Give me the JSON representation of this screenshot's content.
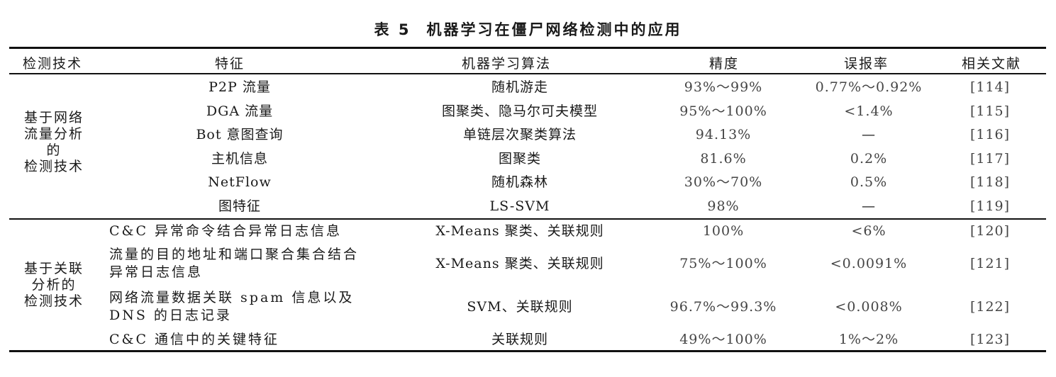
{
  "caption": {
    "number": "表 5",
    "title": "机器学习在僵尸网络检测中的应用"
  },
  "headers": [
    "检测技术",
    "特征",
    "机器学习算法",
    "精度",
    "误报率",
    "相关文献"
  ],
  "group1": {
    "label_lines": [
      "基于网络",
      "流量分析",
      "的",
      "检测技术"
    ],
    "rows": [
      {
        "feature": "P2P 流量",
        "algorithm": "随机游走",
        "accuracy": "93%～99%",
        "fpr": "0.77%～0.92%",
        "ref": "[114]"
      },
      {
        "feature": "DGA 流量",
        "algorithm": "图聚类、隐马尔可夫模型",
        "accuracy": "95%～100%",
        "fpr": "<1.4%",
        "ref": "[115]"
      },
      {
        "feature": "Bot 意图查询",
        "algorithm": "单链层次聚类算法",
        "accuracy": "94.13%",
        "fpr": "—",
        "ref": "[116]"
      },
      {
        "feature": "主机信息",
        "algorithm": "图聚类",
        "accuracy": "81.6%",
        "fpr": "0.2%",
        "ref": "[117]"
      },
      {
        "feature": "NetFlow",
        "algorithm": "随机森林",
        "accuracy": "30%～70%",
        "fpr": "0.5%",
        "ref": "[118]"
      },
      {
        "feature": "图特征",
        "algorithm": "LS-SVM",
        "accuracy": "98%",
        "fpr": "—",
        "ref": "[119]"
      }
    ]
  },
  "group2": {
    "label_lines": [
      "基于关联",
      "分析的",
      "检测技术"
    ],
    "rows": [
      {
        "feature": "C&C 异常命令结合异常日志信息",
        "algorithm": "X-Means 聚类、关联规则",
        "accuracy": "100%",
        "fpr": "<6%",
        "ref": "[120]"
      },
      {
        "feature": "流量的目的地址和端口聚合集合结合异常日志信息",
        "algorithm": "X-Means 聚类、关联规则",
        "accuracy": "75%～100%",
        "fpr": "<0.0091%",
        "ref": "[121]"
      },
      {
        "feature": "网络流量数据关联 spam 信息以及DNS 的日志记录",
        "algorithm": "SVM、关联规则",
        "accuracy": "96.7%～99.3%",
        "fpr": "<0.008%",
        "ref": "[122]"
      },
      {
        "feature": "C&C 通信中的关键特征",
        "algorithm": "关联规则",
        "accuracy": "49%～100%",
        "fpr": "1%～2%",
        "ref": "[123]"
      }
    ]
  }
}
